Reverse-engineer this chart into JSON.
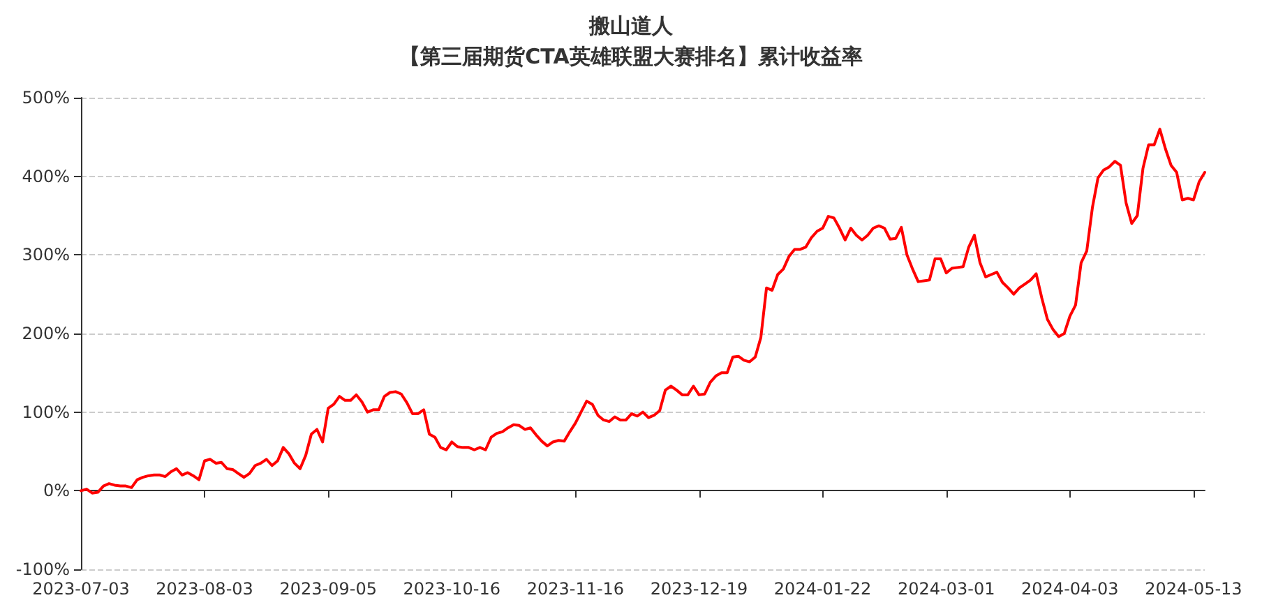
{
  "chart_data": {
    "type": "line",
    "title": "搬山道人",
    "subtitle": "【第三届期货CTA英雄联盟大赛排名】累计收益率",
    "categories": [
      "2023-07-03",
      null,
      null,
      null,
      null,
      null,
      null,
      null,
      null,
      null,
      null,
      null,
      null,
      null,
      null,
      null,
      null,
      null,
      null,
      null,
      null,
      null,
      "2023-08-03",
      null,
      null,
      null,
      null,
      null,
      null,
      null,
      null,
      null,
      null,
      null,
      null,
      null,
      null,
      null,
      null,
      null,
      null,
      null,
      null,
      null,
      "2023-09-05",
      null,
      null,
      null,
      null,
      null,
      null,
      null,
      null,
      null,
      null,
      null,
      null,
      null,
      null,
      null,
      null,
      null,
      null,
      null,
      null,
      null,
      "2023-10-16",
      null,
      null,
      null,
      null,
      null,
      null,
      null,
      null,
      null,
      null,
      null,
      null,
      null,
      null,
      null,
      null,
      null,
      null,
      null,
      null,
      null,
      "2023-11-16",
      null,
      null,
      null,
      null,
      null,
      null,
      null,
      null,
      null,
      null,
      null,
      null,
      null,
      null,
      null,
      null,
      null,
      null,
      null,
      null,
      null,
      "2023-12-19",
      null,
      null,
      null,
      null,
      null,
      null,
      null,
      null,
      null,
      null,
      null,
      null,
      null,
      null,
      null,
      null,
      null,
      null,
      null,
      null,
      null,
      "2024-01-22",
      null,
      null,
      null,
      null,
      null,
      null,
      null,
      null,
      null,
      null,
      null,
      null,
      null,
      null,
      null,
      null,
      null,
      null,
      null,
      null,
      null,
      "2024-03-01",
      null,
      null,
      null,
      null,
      null,
      null,
      null,
      null,
      null,
      null,
      null,
      null,
      null,
      null,
      null,
      null,
      null,
      null,
      null,
      null,
      null,
      "2024-04-03",
      null,
      null,
      null,
      null,
      null,
      null,
      null,
      null,
      null,
      null,
      null,
      null,
      null,
      null,
      null,
      null,
      null,
      null,
      null,
      null,
      null,
      "2024-05-13",
      null,
      null
    ],
    "series": [
      {
        "color": "#ff0000",
        "values": [
          0,
          2,
          -3,
          -2,
          6,
          9,
          7,
          6,
          6,
          4,
          14,
          17,
          19,
          20,
          20,
          18,
          24,
          28,
          20,
          23,
          19,
          14,
          38,
          40,
          35,
          36,
          28,
          27,
          22,
          17,
          22,
          32,
          35,
          40,
          32,
          38,
          55,
          47,
          35,
          28,
          45,
          72,
          78,
          62,
          105,
          110,
          120,
          115,
          115,
          122,
          113,
          100,
          103,
          103,
          120,
          125,
          126,
          123,
          112,
          98,
          98,
          103,
          72,
          68,
          55,
          52,
          62,
          56,
          55,
          55,
          52,
          55,
          52,
          68,
          73,
          75,
          80,
          84,
          83,
          78,
          80,
          71,
          63,
          57,
          62,
          64,
          63,
          75,
          86,
          100,
          114,
          110,
          96,
          90,
          88,
          94,
          90,
          90,
          98,
          95,
          100,
          93,
          96,
          102,
          128,
          133,
          128,
          122,
          122,
          133,
          122,
          123,
          138,
          146,
          150,
          150,
          170,
          171,
          166,
          164,
          170,
          195,
          258,
          255,
          275,
          282,
          298,
          307,
          307,
          310,
          322,
          330,
          334,
          349,
          347,
          334,
          319,
          334,
          325,
          319,
          325,
          334,
          337,
          334,
          320,
          321,
          335,
          300,
          282,
          266,
          267,
          268,
          295,
          295,
          277,
          283,
          284,
          285,
          310,
          325,
          290,
          272,
          275,
          278,
          265,
          258,
          250,
          258,
          263,
          268,
          276,
          245,
          218,
          205,
          196,
          200,
          222,
          236,
          290,
          305,
          360,
          398,
          408,
          412,
          419,
          414,
          366,
          340,
          350,
          410,
          440,
          440,
          460,
          435,
          414,
          405,
          370,
          372,
          370,
          393,
          405
        ]
      }
    ],
    "ylim": [
      -100,
      500
    ],
    "yticks": [
      {
        "value": -100,
        "label": "-100%"
      },
      {
        "value": 0,
        "label": "0%"
      },
      {
        "value": 100,
        "label": "100%"
      },
      {
        "value": 200,
        "label": "200%"
      },
      {
        "value": 300,
        "label": "300%"
      },
      {
        "value": 400,
        "label": "400%"
      },
      {
        "value": 500,
        "label": "500%"
      }
    ],
    "grid": "y",
    "marker": "none",
    "line_style": "solid"
  }
}
